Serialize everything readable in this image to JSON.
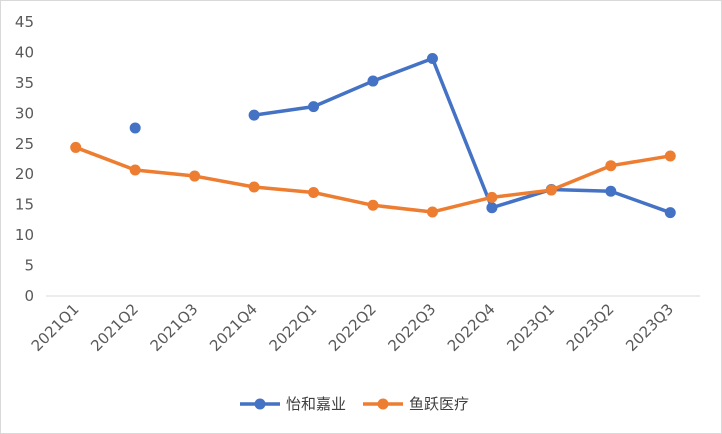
{
  "chart_data": {
    "type": "line",
    "title": "",
    "xlabel": "",
    "ylabel": "",
    "categories": [
      "2021Q1",
      "2021Q2",
      "2021Q3",
      "2021Q4",
      "2022Q1",
      "2022Q2",
      "2022Q3",
      "2022Q4",
      "2023Q1",
      "2023Q2",
      "2023Q3"
    ],
    "ylim": [
      0,
      45
    ],
    "yticks": [
      0,
      5,
      10,
      15,
      20,
      25,
      30,
      35,
      40,
      45
    ],
    "grid": false,
    "legend_position": "bottom",
    "series": [
      {
        "name": "怡和嘉业",
        "color": "#4472C4",
        "values": [
          null,
          27.6,
          null,
          29.7,
          31.1,
          35.3,
          39.0,
          14.5,
          17.5,
          17.2,
          13.7
        ]
      },
      {
        "name": "鱼跃医疗",
        "color": "#ED7D31",
        "values": [
          24.4,
          20.7,
          19.7,
          17.9,
          17.0,
          14.9,
          13.8,
          16.2,
          17.4,
          21.4,
          23.0
        ]
      }
    ]
  }
}
